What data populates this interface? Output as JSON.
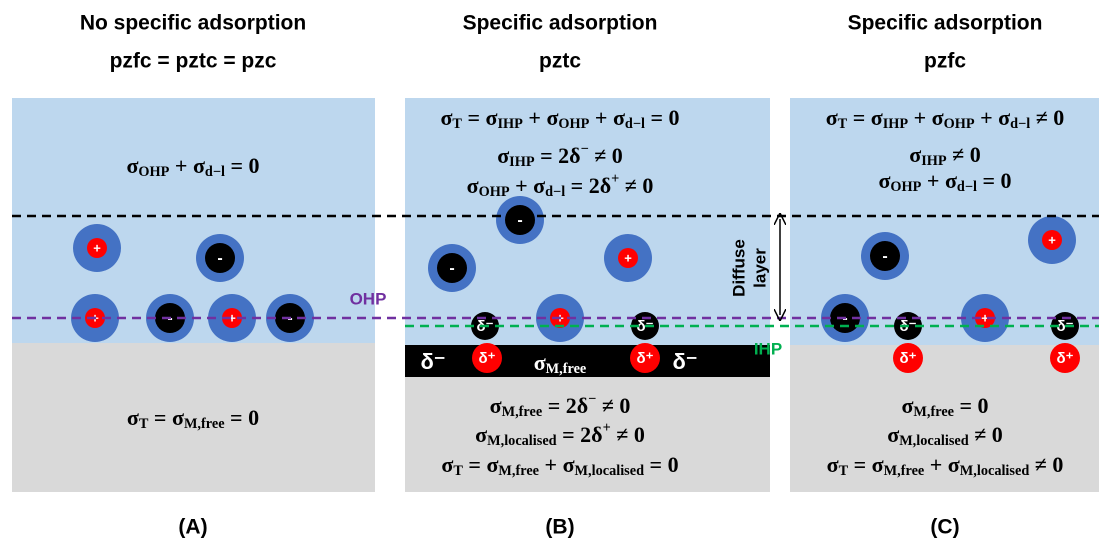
{
  "panels": [
    {
      "label": "(A)",
      "title": [
        "No specific adsorption",
        "pzfc = pztc = pzc"
      ],
      "top_equations": [
        [
          {
            "t": "σ",
            "sub": "OHP"
          },
          {
            "t": " + σ",
            "sub": "d−l"
          },
          {
            "t": " = 0"
          }
        ]
      ],
      "bottom_equations": [
        [
          {
            "t": "σ",
            "sub": "T"
          },
          {
            "t": " = σ",
            "sub": "M,free"
          },
          {
            "t": " = 0"
          }
        ]
      ],
      "ions": [
        "+",
        "-",
        "+",
        "-",
        "+",
        "-"
      ]
    },
    {
      "label": "(B)",
      "title": [
        "Specific adsorption",
        "pztc"
      ],
      "top_equations": [
        [
          {
            "t": "σ",
            "sub": "T"
          },
          {
            "t": " = σ",
            "sub": "IHP"
          },
          {
            "t": " + σ",
            "sub": "OHP"
          },
          {
            "t": " + σ",
            "sub": "d−l"
          },
          {
            "t": " = 0"
          }
        ],
        [
          {
            "t": "σ",
            "sub": "IHP"
          },
          {
            "t": " = 2δ",
            "sup": "−"
          },
          {
            "t": " ≠ 0"
          }
        ],
        [
          {
            "t": "σ",
            "sub": "OHP"
          },
          {
            "t": " + σ",
            "sub": "d−l"
          },
          {
            "t": " = 2δ",
            "sup": "+"
          },
          {
            "t": " ≠ 0"
          }
        ]
      ],
      "bottom_equations": [
        [
          {
            "t": "σ",
            "sub": "M,free"
          },
          {
            "t": " = 2δ",
            "sup": "−"
          },
          {
            "t": " ≠ 0"
          }
        ],
        [
          {
            "t": "σ",
            "sub": "M,localised"
          },
          {
            "t": " = 2δ",
            "sup": "+"
          },
          {
            "t": " ≠ 0"
          }
        ],
        [
          {
            "t": "σ",
            "sub": "T"
          },
          {
            "t": " = σ",
            "sub": "M,free"
          },
          {
            "t": " + σ",
            "sub": "M,localised"
          },
          {
            "t": " = 0"
          }
        ]
      ],
      "band_label": [
        {
          "t": "σ",
          "sub": "M,free"
        }
      ],
      "ions": [
        "-",
        "-",
        "+",
        "+",
        "δ⁻",
        "δ⁻",
        "δ⁻",
        "δ⁺",
        "δ⁺",
        "δ⁻"
      ]
    },
    {
      "label": "(C)",
      "title": [
        "Specific adsorption",
        "pzfc"
      ],
      "top_equations": [
        [
          {
            "t": "σ",
            "sub": "T"
          },
          {
            "t": " = σ",
            "sub": "IHP"
          },
          {
            "t": " + σ",
            "sub": "OHP"
          },
          {
            "t": " + σ",
            "sub": "d−l"
          },
          {
            "t": " ≠ 0"
          }
        ],
        [
          {
            "t": "σ",
            "sub": "IHP"
          },
          {
            "t": " ≠ 0"
          }
        ],
        [
          {
            "t": "σ",
            "sub": "OHP"
          },
          {
            "t": " + σ",
            "sub": "d−l"
          },
          {
            "t": " = 0"
          }
        ]
      ],
      "bottom_equations": [
        [
          {
            "t": "σ",
            "sub": "M,free"
          },
          {
            "t": " = 0"
          }
        ],
        [
          {
            "t": "σ",
            "sub": "M,localised"
          },
          {
            "t": " ≠ 0"
          }
        ],
        [
          {
            "t": "σ",
            "sub": "T"
          },
          {
            "t": " = σ",
            "sub": "M,free"
          },
          {
            "t": " + σ",
            "sub": "M,localised"
          },
          {
            "t": " ≠ 0"
          }
        ]
      ],
      "ions": [
        "-",
        "+",
        "-",
        "δ⁻",
        "+",
        "δ⁻",
        "δ⁺",
        "δ⁺"
      ]
    }
  ],
  "labels": {
    "ohp": "OHP",
    "ihp": "IHP",
    "diffuse_layer": [
      "Diffuse",
      "layer"
    ]
  }
}
